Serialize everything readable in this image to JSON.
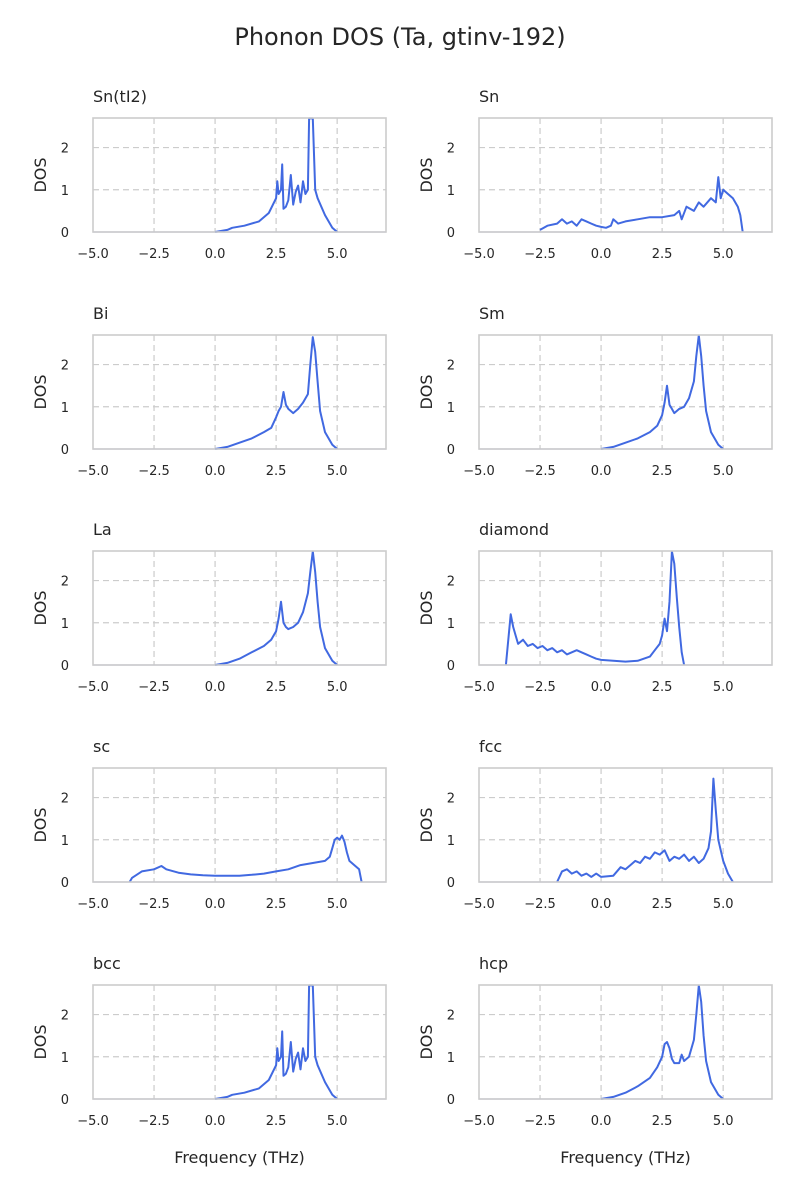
{
  "figure": {
    "title": "Phonon DOS (Ta, gtinv-192)"
  },
  "chart_data": [
    {
      "type": "line",
      "title": "Sn(tI2)",
      "xlabel": "",
      "ylabel": "DOS",
      "xlim": [
        -5.0,
        7.0
      ],
      "ylim": [
        0,
        2.7
      ],
      "xticks": [
        "−5.0",
        "−2.5",
        "0.0",
        "2.5",
        "5.0"
      ],
      "yticks": [
        "0",
        "1",
        "2"
      ],
      "grid": true,
      "x": [
        0.0,
        0.5,
        0.7,
        1.2,
        1.8,
        2.2,
        2.5,
        2.55,
        2.6,
        2.7,
        2.75,
        2.8,
        2.9,
        3.0,
        3.1,
        3.2,
        3.3,
        3.4,
        3.5,
        3.6,
        3.7,
        3.8,
        3.85,
        3.9,
        4.0,
        4.1,
        4.2,
        4.5,
        4.8,
        5.0
      ],
      "y": [
        0.0,
        0.05,
        0.1,
        0.15,
        0.25,
        0.45,
        0.8,
        1.2,
        0.9,
        1.0,
        1.6,
        0.55,
        0.6,
        0.75,
        1.35,
        0.65,
        0.95,
        1.1,
        0.7,
        1.2,
        0.9,
        1.0,
        2.7,
        2.7,
        2.7,
        1.0,
        0.8,
        0.4,
        0.1,
        0.0
      ]
    },
    {
      "type": "line",
      "title": "Sn",
      "xlabel": "",
      "ylabel": "DOS",
      "xlim": [
        -5.0,
        7.0
      ],
      "ylim": [
        0,
        2.7
      ],
      "xticks": [
        "−5.0",
        "−2.5",
        "0.0",
        "2.5",
        "5.0"
      ],
      "yticks": [
        "0",
        "1",
        "2"
      ],
      "grid": true,
      "x": [
        -2.5,
        -2.2,
        -1.8,
        -1.6,
        -1.4,
        -1.2,
        -1.0,
        -0.8,
        -0.6,
        -0.4,
        -0.2,
        0.0,
        0.2,
        0.4,
        0.5,
        0.7,
        1.0,
        1.5,
        2.0,
        2.5,
        3.0,
        3.2,
        3.3,
        3.5,
        3.8,
        4.0,
        4.2,
        4.5,
        4.7,
        4.8,
        4.9,
        5.0,
        5.2,
        5.4,
        5.6,
        5.7,
        5.8
      ],
      "y": [
        0.05,
        0.15,
        0.2,
        0.3,
        0.2,
        0.25,
        0.15,
        0.3,
        0.25,
        0.2,
        0.15,
        0.12,
        0.1,
        0.15,
        0.3,
        0.2,
        0.25,
        0.3,
        0.35,
        0.35,
        0.4,
        0.5,
        0.3,
        0.6,
        0.5,
        0.7,
        0.6,
        0.8,
        0.7,
        1.3,
        0.8,
        1.0,
        0.9,
        0.8,
        0.6,
        0.4,
        0.0
      ]
    },
    {
      "type": "line",
      "title": "Bi",
      "xlabel": "",
      "ylabel": "DOS",
      "xlim": [
        -5.0,
        7.0
      ],
      "ylim": [
        0,
        2.7
      ],
      "xticks": [
        "−5.0",
        "−2.5",
        "0.0",
        "2.5",
        "5.0"
      ],
      "yticks": [
        "0",
        "1",
        "2"
      ],
      "grid": true,
      "x": [
        0.0,
        0.5,
        1.0,
        1.5,
        2.0,
        2.3,
        2.5,
        2.6,
        2.7,
        2.8,
        2.9,
        3.0,
        3.2,
        3.4,
        3.6,
        3.8,
        3.9,
        4.0,
        4.1,
        4.2,
        4.3,
        4.5,
        4.8,
        5.0
      ],
      "y": [
        0.0,
        0.05,
        0.15,
        0.25,
        0.4,
        0.5,
        0.75,
        0.9,
        1.0,
        1.35,
        1.05,
        0.95,
        0.85,
        0.95,
        1.1,
        1.3,
        2.0,
        2.65,
        2.3,
        1.6,
        0.9,
        0.4,
        0.1,
        0.0
      ]
    },
    {
      "type": "line",
      "title": "Sm",
      "xlabel": "",
      "ylabel": "DOS",
      "xlim": [
        -5.0,
        7.0
      ],
      "ylim": [
        0,
        2.7
      ],
      "xticks": [
        "−5.0",
        "−2.5",
        "0.0",
        "2.5",
        "5.0"
      ],
      "yticks": [
        "0",
        "1",
        "2"
      ],
      "grid": true,
      "x": [
        0.0,
        0.5,
        1.0,
        1.5,
        2.0,
        2.3,
        2.5,
        2.6,
        2.7,
        2.8,
        2.9,
        3.0,
        3.2,
        3.4,
        3.6,
        3.8,
        3.9,
        4.0,
        4.1,
        4.2,
        4.3,
        4.5,
        4.8,
        5.0
      ],
      "y": [
        0.0,
        0.05,
        0.15,
        0.25,
        0.4,
        0.55,
        0.8,
        1.1,
        1.5,
        1.05,
        0.95,
        0.85,
        0.95,
        1.0,
        1.2,
        1.6,
        2.2,
        2.7,
        2.2,
        1.5,
        0.9,
        0.4,
        0.1,
        0.0
      ]
    },
    {
      "type": "line",
      "title": "La",
      "xlabel": "",
      "ylabel": "DOS",
      "xlim": [
        -5.0,
        7.0
      ],
      "ylim": [
        0,
        2.7
      ],
      "xticks": [
        "−5.0",
        "−2.5",
        "0.0",
        "2.5",
        "5.0"
      ],
      "yticks": [
        "0",
        "1",
        "2"
      ],
      "grid": true,
      "x": [
        0.0,
        0.5,
        1.0,
        1.5,
        2.0,
        2.3,
        2.5,
        2.6,
        2.7,
        2.8,
        2.9,
        3.0,
        3.2,
        3.4,
        3.6,
        3.8,
        3.9,
        4.0,
        4.1,
        4.2,
        4.3,
        4.5,
        4.8,
        5.0
      ],
      "y": [
        0.0,
        0.05,
        0.15,
        0.3,
        0.45,
        0.6,
        0.8,
        1.1,
        1.5,
        1.0,
        0.9,
        0.85,
        0.9,
        1.0,
        1.25,
        1.7,
        2.2,
        2.7,
        2.2,
        1.5,
        0.9,
        0.4,
        0.1,
        0.0
      ]
    },
    {
      "type": "line",
      "title": "diamond",
      "xlabel": "",
      "ylabel": "DOS",
      "xlim": [
        -5.0,
        7.0
      ],
      "ylim": [
        0,
        2.7
      ],
      "xticks": [
        "−5.0",
        "−2.5",
        "0.0",
        "2.5",
        "5.0"
      ],
      "yticks": [
        "0",
        "1",
        "2"
      ],
      "grid": true,
      "x": [
        -3.9,
        -3.8,
        -3.7,
        -3.6,
        -3.5,
        -3.4,
        -3.2,
        -3.0,
        -2.8,
        -2.6,
        -2.4,
        -2.2,
        -2.0,
        -1.8,
        -1.6,
        -1.4,
        -1.2,
        -1.0,
        -0.8,
        -0.6,
        -0.4,
        -0.2,
        0.0,
        0.5,
        1.0,
        1.5,
        2.0,
        2.2,
        2.4,
        2.5,
        2.6,
        2.7,
        2.8,
        2.9,
        3.0,
        3.1,
        3.2,
        3.3,
        3.4
      ],
      "y": [
        0.0,
        0.6,
        1.2,
        0.9,
        0.7,
        0.5,
        0.6,
        0.45,
        0.5,
        0.4,
        0.45,
        0.35,
        0.4,
        0.3,
        0.35,
        0.25,
        0.3,
        0.35,
        0.3,
        0.25,
        0.2,
        0.15,
        0.12,
        0.1,
        0.08,
        0.1,
        0.2,
        0.35,
        0.5,
        0.7,
        1.1,
        0.8,
        1.5,
        2.7,
        2.4,
        1.6,
        0.9,
        0.3,
        0.0
      ]
    },
    {
      "type": "line",
      "title": "sc",
      "xlabel": "",
      "ylabel": "DOS",
      "xlim": [
        -5.0,
        7.0
      ],
      "ylim": [
        0,
        2.7
      ],
      "xticks": [
        "−5.0",
        "−2.5",
        "0.0",
        "2.5",
        "5.0"
      ],
      "yticks": [
        "0",
        "1",
        "2"
      ],
      "grid": true,
      "x": [
        -3.5,
        -3.4,
        -3.0,
        -2.5,
        -2.2,
        -2.0,
        -1.5,
        -1.0,
        -0.5,
        0.0,
        0.5,
        1.0,
        1.5,
        2.0,
        2.5,
        3.0,
        3.5,
        4.0,
        4.5,
        4.7,
        4.8,
        4.9,
        5.0,
        5.1,
        5.2,
        5.3,
        5.4,
        5.5,
        5.7,
        5.9,
        6.0
      ],
      "y": [
        0.0,
        0.1,
        0.25,
        0.3,
        0.38,
        0.3,
        0.22,
        0.18,
        0.16,
        0.15,
        0.15,
        0.15,
        0.17,
        0.2,
        0.25,
        0.3,
        0.4,
        0.45,
        0.5,
        0.6,
        0.8,
        1.0,
        1.05,
        1.0,
        1.1,
        0.95,
        0.7,
        0.5,
        0.4,
        0.3,
        0.0
      ]
    },
    {
      "type": "line",
      "title": "fcc",
      "xlabel": "",
      "ylabel": "DOS",
      "xlim": [
        -5.0,
        7.0
      ],
      "ylim": [
        0,
        2.7
      ],
      "xticks": [
        "−5.0",
        "−2.5",
        "0.0",
        "2.5",
        "5.0"
      ],
      "yticks": [
        "0",
        "1",
        "2"
      ],
      "grid": true,
      "x": [
        -1.8,
        -1.6,
        -1.4,
        -1.2,
        -1.0,
        -0.8,
        -0.6,
        -0.4,
        -0.2,
        0.0,
        0.5,
        0.8,
        1.0,
        1.2,
        1.4,
        1.6,
        1.8,
        2.0,
        2.2,
        2.4,
        2.6,
        2.8,
        3.0,
        3.2,
        3.4,
        3.6,
        3.8,
        4.0,
        4.2,
        4.4,
        4.5,
        4.6,
        4.7,
        4.8,
        5.0,
        5.2,
        5.4
      ],
      "y": [
        0.0,
        0.25,
        0.3,
        0.2,
        0.25,
        0.15,
        0.2,
        0.12,
        0.2,
        0.12,
        0.15,
        0.35,
        0.3,
        0.4,
        0.5,
        0.45,
        0.6,
        0.55,
        0.7,
        0.65,
        0.75,
        0.5,
        0.6,
        0.55,
        0.65,
        0.5,
        0.6,
        0.45,
        0.55,
        0.8,
        1.2,
        2.45,
        1.7,
        1.0,
        0.5,
        0.2,
        0.0
      ]
    },
    {
      "type": "line",
      "title": "bcc",
      "xlabel": "Frequency (THz)",
      "ylabel": "DOS",
      "xlim": [
        -5.0,
        7.0
      ],
      "ylim": [
        0,
        2.7
      ],
      "xticks": [
        "−5.0",
        "−2.5",
        "0.0",
        "2.5",
        "5.0"
      ],
      "yticks": [
        "0",
        "1",
        "2"
      ],
      "grid": true,
      "x": [
        0.0,
        0.5,
        0.7,
        1.2,
        1.8,
        2.2,
        2.5,
        2.55,
        2.6,
        2.7,
        2.75,
        2.8,
        2.9,
        3.0,
        3.1,
        3.2,
        3.3,
        3.4,
        3.5,
        3.6,
        3.7,
        3.8,
        3.85,
        3.9,
        4.0,
        4.1,
        4.2,
        4.5,
        4.8,
        5.0
      ],
      "y": [
        0.0,
        0.05,
        0.1,
        0.15,
        0.25,
        0.45,
        0.8,
        1.2,
        0.9,
        1.0,
        1.6,
        0.55,
        0.6,
        0.75,
        1.35,
        0.65,
        0.95,
        1.1,
        0.7,
        1.2,
        0.9,
        1.0,
        2.7,
        2.7,
        2.7,
        1.0,
        0.8,
        0.4,
        0.1,
        0.0
      ]
    },
    {
      "type": "line",
      "title": "hcp",
      "xlabel": "Frequency (THz)",
      "ylabel": "DOS",
      "xlim": [
        -5.0,
        7.0
      ],
      "ylim": [
        0,
        2.7
      ],
      "xticks": [
        "−5.0",
        "−2.5",
        "0.0",
        "2.5",
        "5.0"
      ],
      "yticks": [
        "0",
        "1",
        "2"
      ],
      "grid": true,
      "x": [
        0.0,
        0.5,
        1.0,
        1.5,
        2.0,
        2.3,
        2.5,
        2.6,
        2.7,
        2.8,
        2.9,
        3.0,
        3.2,
        3.3,
        3.4,
        3.6,
        3.8,
        3.9,
        4.0,
        4.1,
        4.2,
        4.3,
        4.5,
        4.8,
        5.0
      ],
      "y": [
        0.0,
        0.05,
        0.15,
        0.3,
        0.5,
        0.75,
        1.0,
        1.3,
        1.35,
        1.2,
        0.95,
        0.85,
        0.85,
        1.05,
        0.9,
        1.0,
        1.4,
        2.0,
        2.7,
        2.3,
        1.5,
        0.9,
        0.4,
        0.1,
        0.0
      ]
    }
  ]
}
